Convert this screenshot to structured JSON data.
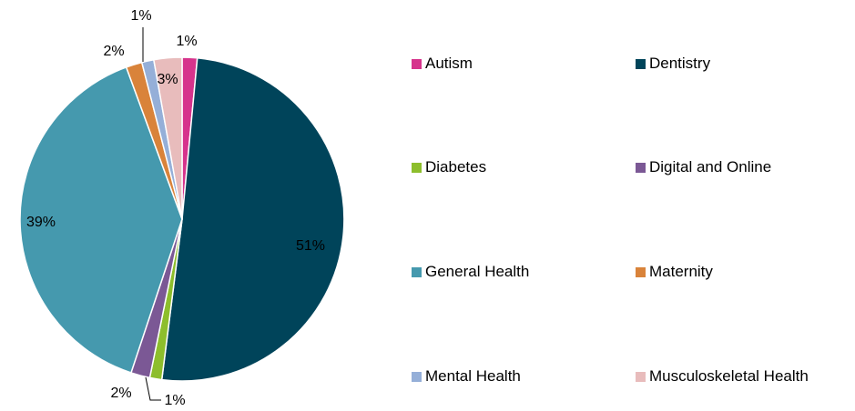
{
  "chart_data": {
    "type": "pie",
    "title": "",
    "categories": [
      "Autism",
      "Dentistry",
      "Diabetes",
      "Digital and Online",
      "General Health",
      "Maternity",
      "Mental Health",
      "Musculoskeletal Health"
    ],
    "values": [
      1.5,
      50.5,
      1.2,
      1.9,
      39.3,
      1.6,
      1.2,
      2.8
    ],
    "labels": [
      "1%",
      "51%",
      "1%",
      "2%",
      "39%",
      "2%",
      "1%",
      "3%"
    ],
    "colors": [
      "#D6338C",
      "#00445A",
      "#8DBE2C",
      "#7B5895",
      "#4599AE",
      "#D9833A",
      "#95AFD8",
      "#E8BCBC"
    ],
    "legend_position": "right"
  }
}
